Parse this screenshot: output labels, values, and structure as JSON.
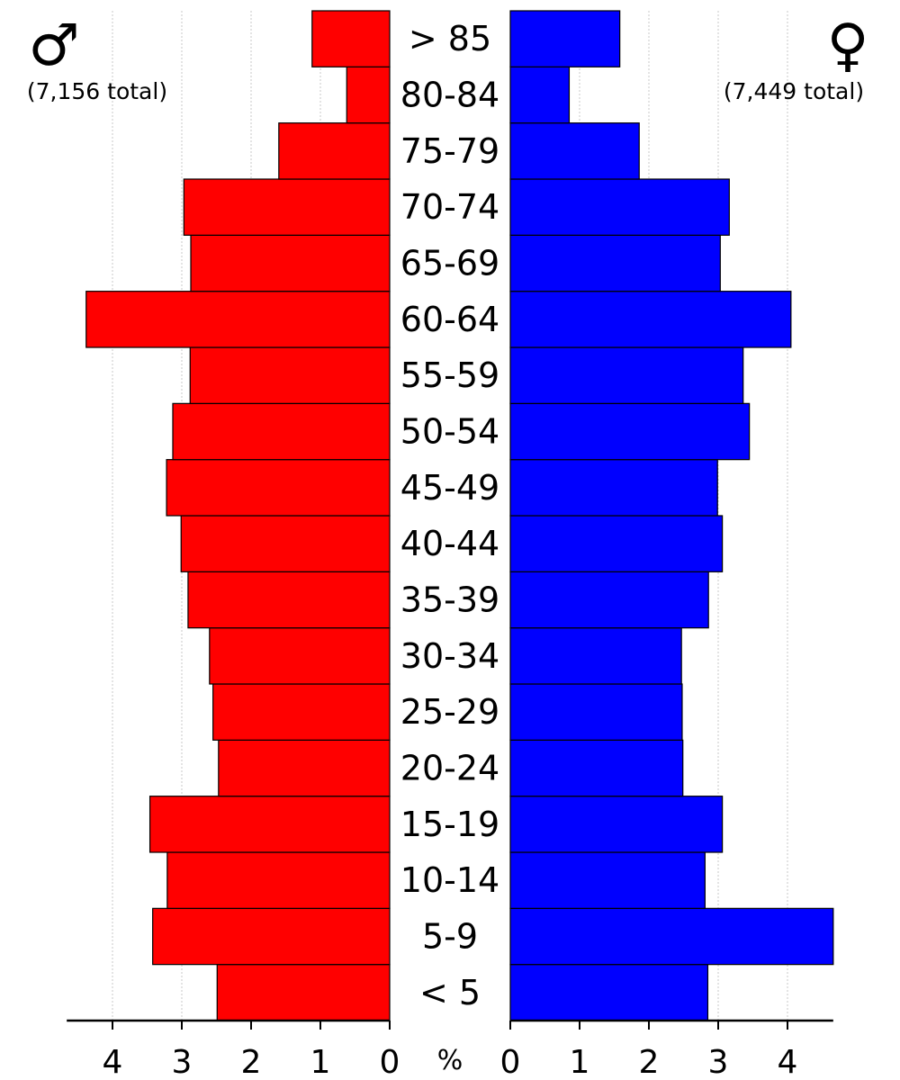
{
  "chart_data": {
    "type": "bar",
    "orientation": "population-pyramid",
    "categories": [
      "< 5",
      "5-9",
      "10-14",
      "15-19",
      "20-24",
      "25-29",
      "30-34",
      "35-39",
      "40-44",
      "45-49",
      "50-54",
      "55-59",
      "60-64",
      "65-69",
      "70-74",
      "75-79",
      "80-84",
      "> 85"
    ],
    "series": [
      {
        "symbol": "♂",
        "total_label": "(7,156 total)",
        "color": "#ff0000",
        "side": "left",
        "values": [
          2.49,
          3.42,
          3.21,
          3.46,
          2.47,
          2.55,
          2.6,
          2.91,
          3.01,
          3.22,
          3.13,
          2.88,
          4.38,
          2.87,
          2.97,
          1.6,
          0.62,
          1.12
        ]
      },
      {
        "symbol": "♀",
        "total_label": "(7,449 total)",
        "color": "#0000ff",
        "side": "right",
        "values": [
          2.85,
          4.66,
          2.81,
          3.06,
          2.49,
          2.48,
          2.47,
          2.86,
          3.06,
          2.99,
          3.45,
          3.36,
          4.05,
          3.03,
          3.16,
          1.86,
          0.85,
          1.58
        ]
      }
    ],
    "xlabel": "%",
    "xlim": [
      0,
      4.66
    ],
    "xticks": [
      "0",
      "1",
      "2",
      "3",
      "4"
    ],
    "grid": true
  }
}
